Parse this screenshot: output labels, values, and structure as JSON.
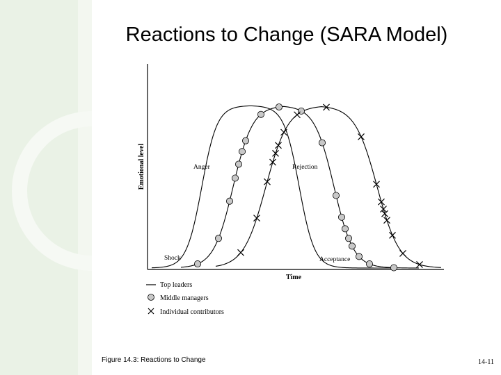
{
  "slide": {
    "title": "Reactions to Change (SARA Model)",
    "caption": "Figure 14.3: Reactions to Change",
    "page_number": "14-11"
  },
  "figure": {
    "y_axis_label": "Emotional level",
    "x_axis_label": "Time",
    "stage_labels": {
      "shock": "Shock",
      "anger": "Anger",
      "rejection": "Rejection",
      "acceptance": "Acceptance"
    },
    "legend": {
      "top_leaders": "Top leaders",
      "middle_managers": "Middle managers",
      "individual_contributors": "Individual contributors"
    }
  },
  "colors": {
    "panel_bg": "#eaf2e6",
    "panel_ring": "#f6f9f4",
    "line": "#000000",
    "circle_fill": "#c8c8c8"
  }
}
